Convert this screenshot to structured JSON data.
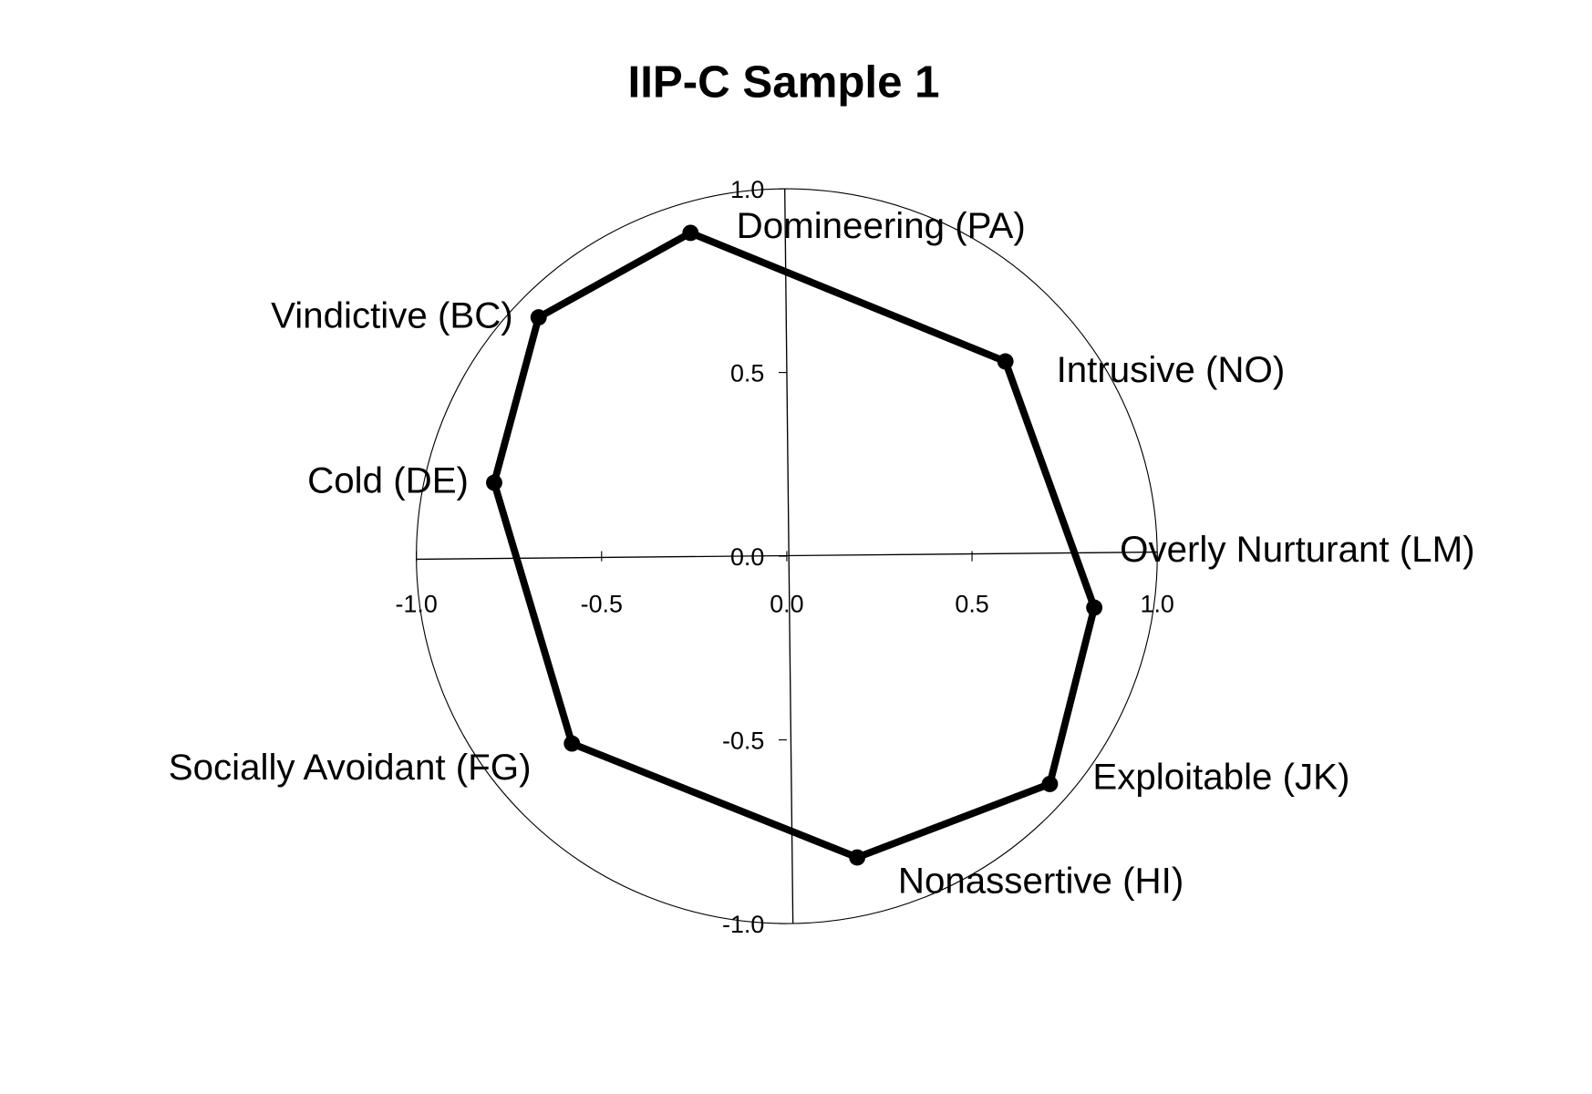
{
  "chart_data": {
    "type": "line",
    "title": "IIP-C Sample 1",
    "xlim": [
      -1.0,
      1.0
    ],
    "ylim": [
      -1.0,
      1.0
    ],
    "x_ticks": [
      "-1.0",
      "-0.5",
      "0.0",
      "0.5",
      "1.0"
    ],
    "y_ticks": [
      "1.0",
      "0.5",
      "0.0",
      "-0.5",
      "-1.0"
    ],
    "grid": false,
    "unit_circle": true,
    "closed_polygon": true,
    "line_color": "#000000",
    "points": [
      {
        "label": "Domineering (PA)",
        "x": -0.26,
        "y": 0.88
      },
      {
        "label": "Intrusive (NO)",
        "x": 0.59,
        "y": 0.53
      },
      {
        "label": "Overly Nurturant (LM)",
        "x": 0.83,
        "y": -0.14
      },
      {
        "label": "Exploitable (JK)",
        "x": 0.71,
        "y": -0.62
      },
      {
        "label": "Nonassertive (HI)",
        "x": 0.19,
        "y": -0.82
      },
      {
        "label": "Socially Avoidant (FG)",
        "x": -0.58,
        "y": -0.51
      },
      {
        "label": "Cold (DE)",
        "x": -0.79,
        "y": 0.2
      },
      {
        "label": "Vindictive (BC)",
        "x": -0.67,
        "y": 0.65
      }
    ]
  }
}
